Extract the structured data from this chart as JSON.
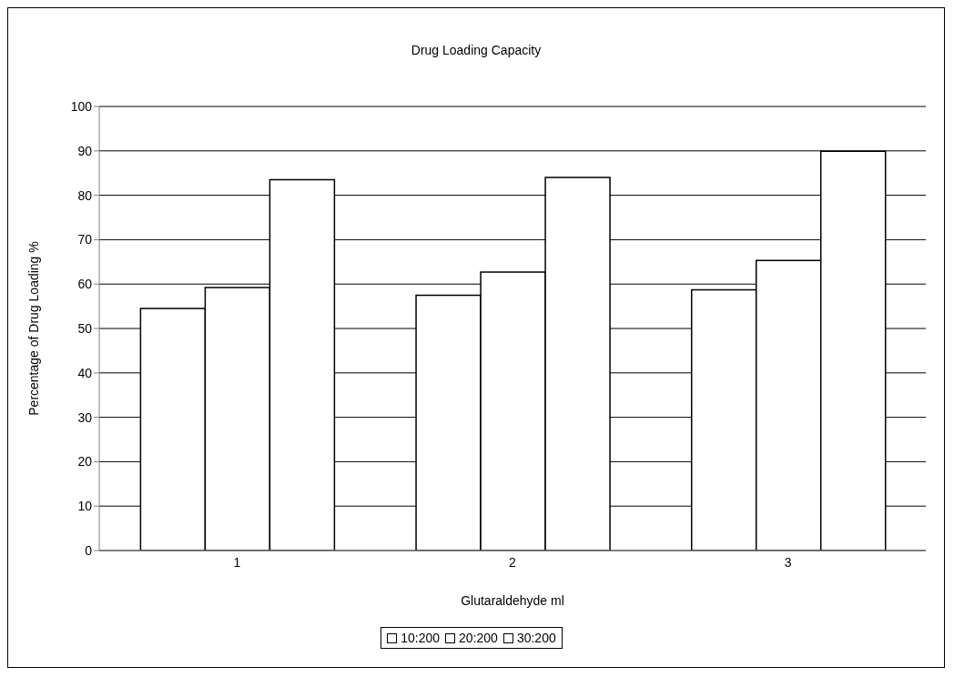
{
  "chart_data": {
    "type": "bar",
    "title": "Drug Loading Capacity",
    "xlabel": "Glutaraldehyde ml",
    "ylabel": "Percentage of Drug Loading %",
    "categories": [
      "1",
      "2",
      "3"
    ],
    "series": [
      {
        "name": "10:200",
        "color": "#ffffff",
        "values": [
          54.5,
          57.5,
          58.7
        ]
      },
      {
        "name": "20:200",
        "color": "#ffffff",
        "values": [
          59.2,
          62.7,
          65.3
        ]
      },
      {
        "name": "30:200",
        "color": "#ffffff",
        "values": [
          83.5,
          84.0,
          89.9
        ]
      }
    ],
    "ylim": [
      0,
      100
    ],
    "yticks": [
      0,
      10,
      20,
      30,
      40,
      50,
      60,
      70,
      80,
      90,
      100
    ],
    "grid": "y",
    "legend": "bottom"
  }
}
